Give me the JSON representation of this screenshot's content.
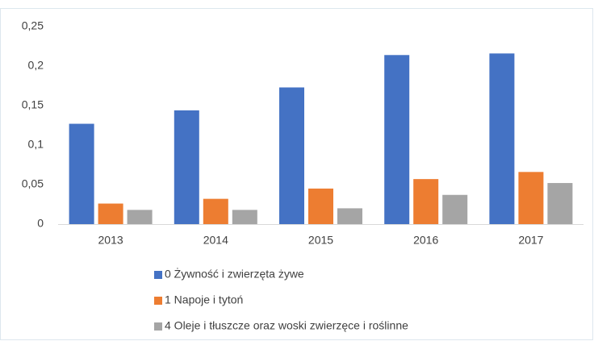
{
  "chart_data": {
    "type": "bar",
    "categories": [
      "2013",
      "2014",
      "2015",
      "2016",
      "2017"
    ],
    "series": [
      {
        "name": "0 Żywność i zwierzęta żywe",
        "color": "#4472c4",
        "values": [
          0.127,
          0.144,
          0.173,
          0.214,
          0.216
        ]
      },
      {
        "name": "1 Napoje i tytoń",
        "color": "#ed7d31",
        "values": [
          0.026,
          0.032,
          0.045,
          0.057,
          0.066
        ]
      },
      {
        "name": "4 Oleje i tłuszcze oraz woski zwierzęce i roślinne",
        "color": "#a5a5a5",
        "values": [
          0.018,
          0.018,
          0.02,
          0.037,
          0.052
        ]
      }
    ],
    "ylim": [
      0,
      0.25
    ],
    "yticks": [
      0,
      {
        "value": 0.05,
        "label": "0,05"
      },
      {
        "value": 0.1,
        "label": "0,1"
      },
      {
        "value": 0.15,
        "label": "0,15"
      },
      {
        "value": 0.2,
        "label": "0,2"
      },
      {
        "value": 0.25,
        "label": "0,25"
      }
    ],
    "grid": false,
    "legend": "bottom"
  }
}
